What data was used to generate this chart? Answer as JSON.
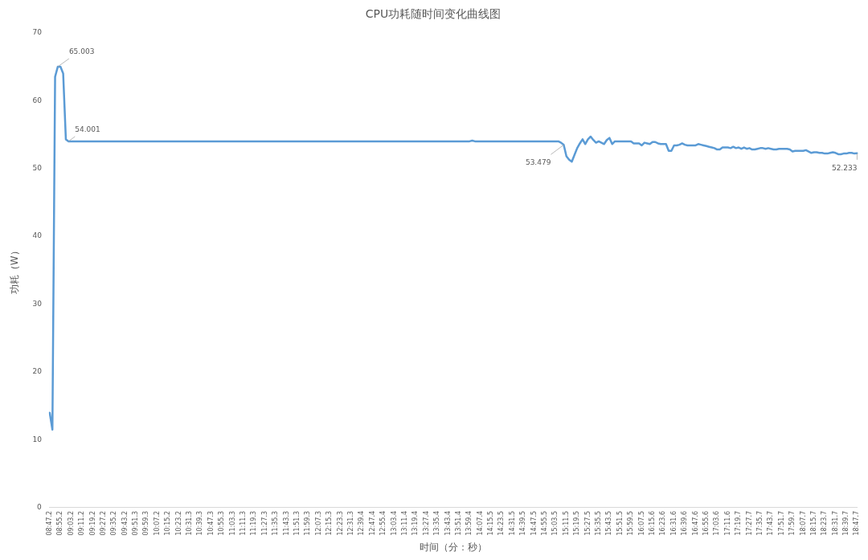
{
  "chart_data": {
    "type": "line",
    "title": "CPU功耗随时间变化曲线图",
    "xlabel": "时间（分：秒）",
    "ylabel": "功耗（W）",
    "categories": [
      "08:47.2",
      null,
      null,
      null,
      "08:55.2",
      null,
      null,
      null,
      "09:03.2",
      null,
      null,
      null,
      "09:11.2",
      null,
      null,
      null,
      "09:19.2",
      null,
      null,
      null,
      "09:27.2",
      null,
      null,
      null,
      "09:35.2",
      null,
      null,
      null,
      "09:43.2",
      null,
      null,
      null,
      "09:51.3",
      null,
      null,
      null,
      "09:59.3",
      null,
      null,
      null,
      "10:07.2",
      null,
      null,
      null,
      "10:15.2",
      null,
      null,
      null,
      "10:23.2",
      null,
      null,
      null,
      "10:31.3",
      null,
      null,
      null,
      "10:39.3",
      null,
      null,
      null,
      "10:47.3",
      null,
      null,
      null,
      "10:55.3",
      null,
      null,
      null,
      "11:03.3",
      null,
      null,
      null,
      "11:11.3",
      null,
      null,
      null,
      "11:19.3",
      null,
      null,
      null,
      "11:27.3",
      null,
      null,
      null,
      "11:35.3",
      null,
      null,
      null,
      "11:43.3",
      null,
      null,
      null,
      "11:51.3",
      null,
      null,
      null,
      "11:59.3",
      null,
      null,
      null,
      "12:07.3",
      null,
      null,
      null,
      "12:15.3",
      null,
      null,
      null,
      "12:23.3",
      null,
      null,
      null,
      "12:31.3",
      null,
      null,
      null,
      "12:39.4",
      null,
      null,
      null,
      "12:47.4",
      null,
      null,
      null,
      "12:55.4",
      null,
      null,
      null,
      "13:03.4",
      null,
      null,
      null,
      "13:11.4",
      null,
      null,
      null,
      "13:19.4",
      null,
      null,
      null,
      "13:27.4",
      null,
      null,
      null,
      "13:35.4",
      null,
      null,
      null,
      "13:43.4",
      null,
      null,
      null,
      "13:51.4",
      null,
      null,
      null,
      "13:59.4",
      null,
      null,
      null,
      "14:07.4",
      null,
      null,
      null,
      "14:15.5",
      null,
      null,
      null,
      "14:23.5",
      null,
      null,
      null,
      "14:31.5",
      null,
      null,
      null,
      "14:39.5",
      null,
      null,
      null,
      "14:47.5",
      null,
      null,
      null,
      "14:55.5",
      null,
      null,
      null,
      "15:03.5",
      null,
      null,
      null,
      "15:11.5",
      null,
      null,
      null,
      "15:19.5",
      null,
      null,
      null,
      "15:27.5",
      null,
      null,
      null,
      "15:35.5",
      null,
      null,
      null,
      "15:43.5",
      null,
      null,
      null,
      "15:51.5",
      null,
      null,
      null,
      "15:59.5",
      null,
      null,
      null,
      "16:07.5",
      null,
      null,
      null,
      "16:15.6",
      null,
      null,
      null,
      "16:23.6",
      null,
      null,
      null,
      "16:31.6",
      null,
      null,
      null,
      "16:39.6",
      null,
      null,
      null,
      "16:47.6",
      null,
      null,
      null,
      "16:55.6",
      null,
      null,
      null,
      "17:03.6",
      null,
      null,
      null,
      "17:11.6",
      null,
      null,
      null,
      "17:19.7",
      null,
      null,
      null,
      "17:27.7",
      null,
      null,
      null,
      "17:35.7",
      null,
      null,
      null,
      "17:43.7",
      null,
      null,
      null,
      "17:51.7",
      null,
      null,
      null,
      "17:59.7",
      null,
      null,
      null,
      "18:07.7",
      null,
      null,
      null,
      "18:15.7",
      null,
      null,
      null,
      "18:23.7",
      null,
      null,
      null,
      "18:31.7",
      null,
      null,
      null,
      "18:39.7",
      null,
      null,
      null,
      "18:47.7"
    ],
    "series": [
      {
        "color": "#5b9bd5",
        "values": [
          14,
          11.5,
          63.5,
          65.003,
          65,
          64,
          54.3,
          54.001,
          54,
          54,
          54,
          54,
          54,
          54,
          54,
          54,
          54,
          54,
          54,
          54,
          54,
          54,
          54,
          54,
          54,
          54,
          54,
          54,
          54,
          54,
          54,
          54,
          54,
          54,
          54,
          54,
          54,
          54,
          54,
          54,
          54,
          54,
          54,
          54,
          54,
          54,
          54,
          54,
          54,
          54,
          54,
          54,
          54,
          54,
          54,
          54,
          54,
          54,
          54,
          54,
          54,
          54,
          54,
          54,
          54,
          54,
          54,
          54,
          54,
          54,
          54,
          54,
          54,
          54,
          54,
          54,
          54,
          54,
          54,
          54,
          54,
          54,
          54,
          54,
          54,
          54,
          54,
          54,
          54,
          54,
          54,
          54,
          54,
          54,
          54,
          54,
          54,
          54,
          54,
          54,
          54,
          54,
          54,
          54,
          54,
          54,
          54,
          54,
          54,
          54,
          54,
          54,
          54,
          54,
          54,
          54,
          54,
          54,
          54,
          54,
          54,
          54,
          54,
          54,
          54,
          54,
          54,
          54,
          54,
          54,
          54,
          54,
          54,
          54,
          54,
          54,
          54,
          54,
          54,
          54,
          54,
          54,
          54,
          54,
          54,
          54,
          54,
          54,
          54,
          54,
          54,
          54,
          54,
          54,
          54,
          54,
          54,
          54.1,
          54,
          54,
          54,
          54,
          54,
          54,
          54,
          54,
          54,
          54,
          54,
          54,
          54,
          54,
          54,
          54,
          54,
          54,
          54,
          54,
          54,
          54,
          54,
          54,
          54,
          54,
          54,
          54,
          54,
          54,
          54,
          54,
          53.8,
          53.479,
          51.8,
          51.3,
          51,
          52,
          53,
          53.7,
          54.3,
          53.6,
          54.3,
          54.7,
          54.2,
          53.8,
          54,
          53.8,
          53.6,
          54.2,
          54.5,
          53.6,
          54,
          54,
          54,
          54,
          54,
          54,
          54,
          53.7,
          53.7,
          53.7,
          53.4,
          53.8,
          53.7,
          53.6,
          53.9,
          53.9,
          53.7,
          53.6,
          53.6,
          53.6,
          52.6,
          52.6,
          53.4,
          53.4,
          53.5,
          53.7,
          53.5,
          53.4,
          53.4,
          53.4,
          53.4,
          53.6,
          53.5,
          53.4,
          53.3,
          53.2,
          53.1,
          53,
          52.8,
          52.8,
          53.1,
          53.1,
          53.1,
          53,
          53.2,
          53,
          53.1,
          52.9,
          53.1,
          52.9,
          53,
          52.8,
          52.8,
          52.9,
          53,
          53,
          52.9,
          53,
          52.9,
          52.8,
          52.8,
          52.9,
          52.9,
          52.9,
          52.9,
          52.8,
          52.5,
          52.6,
          52.6,
          52.6,
          52.6,
          52.7,
          52.5,
          52.3,
          52.4,
          52.4,
          52.3,
          52.3,
          52.2,
          52.2,
          52.3,
          52.4,
          52.3,
          52.1,
          52.1,
          52.2,
          52.2,
          52.3,
          52.3,
          52.2,
          52.233
        ],
        "value_labels": [
          null,
          null,
          null,
          "65.003",
          null,
          null,
          null,
          "54.001",
          null,
          null,
          null,
          null,
          null,
          null,
          null,
          null,
          null,
          null,
          null,
          null,
          null,
          null,
          null,
          null,
          null,
          null,
          null,
          null,
          null,
          null,
          null,
          null,
          null,
          null,
          null,
          null,
          null,
          null,
          null,
          null,
          null,
          null,
          null,
          null,
          null,
          null,
          null,
          null,
          null,
          null,
          null,
          null,
          null,
          null,
          null,
          null,
          null,
          null,
          null,
          null,
          null,
          null,
          null,
          null,
          null,
          null,
          null,
          null,
          null,
          null,
          null,
          null,
          null,
          null,
          null,
          null,
          null,
          null,
          null,
          null,
          null,
          null,
          null,
          null,
          null,
          null,
          null,
          null,
          null,
          null,
          null,
          null,
          null,
          null,
          null,
          null,
          null,
          null,
          null,
          null,
          null,
          null,
          null,
          null,
          null,
          null,
          null,
          null,
          null,
          null,
          null,
          null,
          null,
          null,
          null,
          null,
          null,
          null,
          null,
          null,
          null,
          null,
          null,
          null,
          null,
          null,
          null,
          null,
          null,
          null,
          null,
          null,
          null,
          null,
          null,
          null,
          null,
          null,
          null,
          null,
          null,
          null,
          null,
          null,
          null,
          null,
          null,
          null,
          null,
          null,
          null,
          null,
          null,
          null,
          null,
          null,
          null,
          null,
          null,
          null,
          null,
          null,
          null,
          null,
          null,
          null,
          null,
          null,
          null,
          null,
          null,
          null,
          null,
          null,
          null,
          null,
          null,
          null,
          null,
          null,
          null,
          null,
          null,
          null,
          null,
          null,
          null,
          null,
          null,
          null,
          null,
          "53.479",
          null,
          null,
          null,
          null,
          null,
          null,
          null,
          null,
          null,
          null,
          null,
          null,
          null,
          null,
          null,
          null,
          null,
          null,
          null,
          null,
          null,
          null,
          null,
          null,
          null,
          null,
          null,
          null,
          null,
          null,
          null,
          null,
          null,
          null,
          null,
          null,
          null,
          null,
          null,
          null,
          null,
          null,
          null,
          null,
          null,
          null,
          null,
          null,
          null,
          null,
          null,
          null,
          null,
          null,
          null,
          null,
          null,
          null,
          null,
          null,
          null,
          null,
          null,
          null,
          null,
          null,
          null,
          null,
          null,
          null,
          null,
          null,
          null,
          null,
          null,
          null,
          null,
          null,
          null,
          null,
          null,
          null,
          null,
          null,
          null,
          null,
          null,
          null,
          null,
          null,
          null,
          null,
          null,
          null,
          null,
          null,
          null,
          null,
          null,
          null,
          null,
          null,
          null,
          null,
          null,
          null,
          null,
          null,
          "52.233"
        ]
      }
    ],
    "ylim": [
      0,
      70
    ],
    "yticks": [
      0,
      10,
      20,
      30,
      40,
      50,
      60,
      70
    ],
    "grid": false,
    "legend": false,
    "marker": "none",
    "line_style": "solid"
  }
}
